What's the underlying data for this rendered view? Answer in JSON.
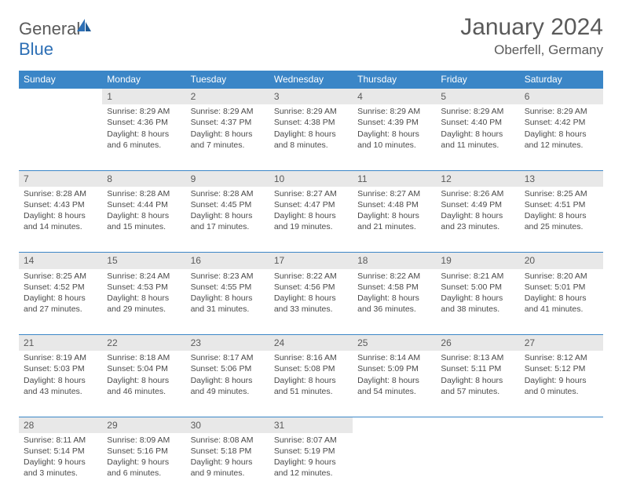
{
  "logo": {
    "word1": "General",
    "word2": "Blue"
  },
  "title": "January 2024",
  "location": "Oberfell, Germany",
  "colors": {
    "header_bg": "#3b86c7",
    "header_text": "#ffffff",
    "daynum_bg": "#e8e8e8",
    "border_top": "#3b86c7",
    "text": "#4a4a4a",
    "title_text": "#5a5a5a",
    "logo_gray": "#5a5a5a",
    "logo_blue": "#2d6fb5"
  },
  "weekdays": [
    "Sunday",
    "Monday",
    "Tuesday",
    "Wednesday",
    "Thursday",
    "Friday",
    "Saturday"
  ],
  "weeks": [
    {
      "days": [
        {
          "n": "",
          "empty": true
        },
        {
          "n": "1",
          "sunrise": "8:29 AM",
          "sunset": "4:36 PM",
          "daylight": "8 hours and 6 minutes."
        },
        {
          "n": "2",
          "sunrise": "8:29 AM",
          "sunset": "4:37 PM",
          "daylight": "8 hours and 7 minutes."
        },
        {
          "n": "3",
          "sunrise": "8:29 AM",
          "sunset": "4:38 PM",
          "daylight": "8 hours and 8 minutes."
        },
        {
          "n": "4",
          "sunrise": "8:29 AM",
          "sunset": "4:39 PM",
          "daylight": "8 hours and 10 minutes."
        },
        {
          "n": "5",
          "sunrise": "8:29 AM",
          "sunset": "4:40 PM",
          "daylight": "8 hours and 11 minutes."
        },
        {
          "n": "6",
          "sunrise": "8:29 AM",
          "sunset": "4:42 PM",
          "daylight": "8 hours and 12 minutes."
        }
      ]
    },
    {
      "days": [
        {
          "n": "7",
          "sunrise": "8:28 AM",
          "sunset": "4:43 PM",
          "daylight": "8 hours and 14 minutes."
        },
        {
          "n": "8",
          "sunrise": "8:28 AM",
          "sunset": "4:44 PM",
          "daylight": "8 hours and 15 minutes."
        },
        {
          "n": "9",
          "sunrise": "8:28 AM",
          "sunset": "4:45 PM",
          "daylight": "8 hours and 17 minutes."
        },
        {
          "n": "10",
          "sunrise": "8:27 AM",
          "sunset": "4:47 PM",
          "daylight": "8 hours and 19 minutes."
        },
        {
          "n": "11",
          "sunrise": "8:27 AM",
          "sunset": "4:48 PM",
          "daylight": "8 hours and 21 minutes."
        },
        {
          "n": "12",
          "sunrise": "8:26 AM",
          "sunset": "4:49 PM",
          "daylight": "8 hours and 23 minutes."
        },
        {
          "n": "13",
          "sunrise": "8:25 AM",
          "sunset": "4:51 PM",
          "daylight": "8 hours and 25 minutes."
        }
      ]
    },
    {
      "days": [
        {
          "n": "14",
          "sunrise": "8:25 AM",
          "sunset": "4:52 PM",
          "daylight": "8 hours and 27 minutes."
        },
        {
          "n": "15",
          "sunrise": "8:24 AM",
          "sunset": "4:53 PM",
          "daylight": "8 hours and 29 minutes."
        },
        {
          "n": "16",
          "sunrise": "8:23 AM",
          "sunset": "4:55 PM",
          "daylight": "8 hours and 31 minutes."
        },
        {
          "n": "17",
          "sunrise": "8:22 AM",
          "sunset": "4:56 PM",
          "daylight": "8 hours and 33 minutes."
        },
        {
          "n": "18",
          "sunrise": "8:22 AM",
          "sunset": "4:58 PM",
          "daylight": "8 hours and 36 minutes."
        },
        {
          "n": "19",
          "sunrise": "8:21 AM",
          "sunset": "5:00 PM",
          "daylight": "8 hours and 38 minutes."
        },
        {
          "n": "20",
          "sunrise": "8:20 AM",
          "sunset": "5:01 PM",
          "daylight": "8 hours and 41 minutes."
        }
      ]
    },
    {
      "days": [
        {
          "n": "21",
          "sunrise": "8:19 AM",
          "sunset": "5:03 PM",
          "daylight": "8 hours and 43 minutes."
        },
        {
          "n": "22",
          "sunrise": "8:18 AM",
          "sunset": "5:04 PM",
          "daylight": "8 hours and 46 minutes."
        },
        {
          "n": "23",
          "sunrise": "8:17 AM",
          "sunset": "5:06 PM",
          "daylight": "8 hours and 49 minutes."
        },
        {
          "n": "24",
          "sunrise": "8:16 AM",
          "sunset": "5:08 PM",
          "daylight": "8 hours and 51 minutes."
        },
        {
          "n": "25",
          "sunrise": "8:14 AM",
          "sunset": "5:09 PM",
          "daylight": "8 hours and 54 minutes."
        },
        {
          "n": "26",
          "sunrise": "8:13 AM",
          "sunset": "5:11 PM",
          "daylight": "8 hours and 57 minutes."
        },
        {
          "n": "27",
          "sunrise": "8:12 AM",
          "sunset": "5:12 PM",
          "daylight": "9 hours and 0 minutes."
        }
      ]
    },
    {
      "days": [
        {
          "n": "28",
          "sunrise": "8:11 AM",
          "sunset": "5:14 PM",
          "daylight": "9 hours and 3 minutes."
        },
        {
          "n": "29",
          "sunrise": "8:09 AM",
          "sunset": "5:16 PM",
          "daylight": "9 hours and 6 minutes."
        },
        {
          "n": "30",
          "sunrise": "8:08 AM",
          "sunset": "5:18 PM",
          "daylight": "9 hours and 9 minutes."
        },
        {
          "n": "31",
          "sunrise": "8:07 AM",
          "sunset": "5:19 PM",
          "daylight": "9 hours and 12 minutes."
        },
        {
          "n": "",
          "empty": true
        },
        {
          "n": "",
          "empty": true
        },
        {
          "n": "",
          "empty": true
        }
      ]
    }
  ],
  "labels": {
    "sunrise": "Sunrise:",
    "sunset": "Sunset:",
    "daylight": "Daylight:"
  }
}
